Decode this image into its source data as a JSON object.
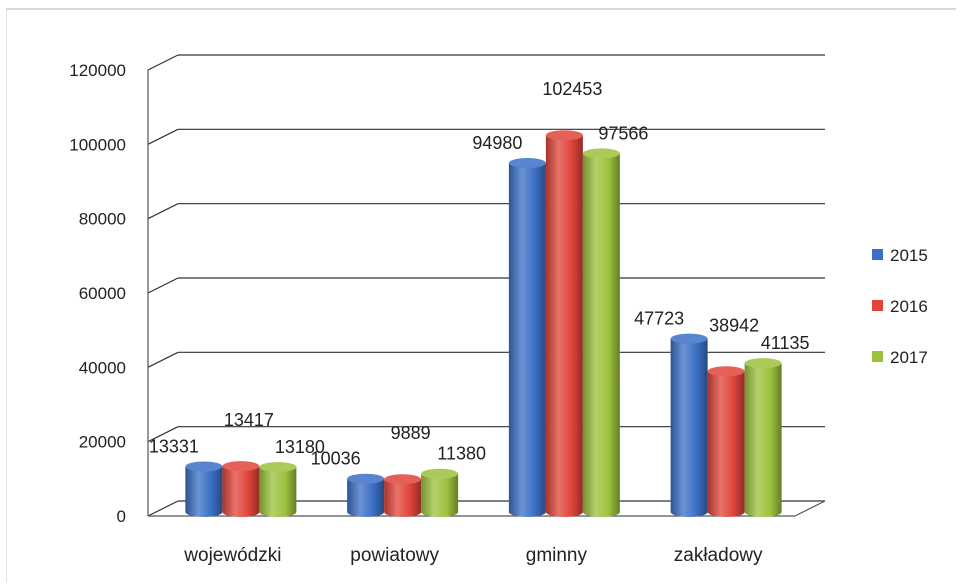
{
  "chart_data": {
    "type": "bar",
    "title": "",
    "xlabel": "",
    "ylabel": "",
    "ylim": [
      0,
      120000
    ],
    "yticks": [
      0,
      20000,
      40000,
      60000,
      80000,
      100000,
      120000
    ],
    "grid": true,
    "legend_position": "right",
    "categories": [
      "wojewódzki",
      "powiatowy",
      "gminny",
      "zakładowy"
    ],
    "series": [
      {
        "name": "2015",
        "color": "#3b6fc4",
        "values": [
          13331,
          10036,
          94980,
          47723
        ]
      },
      {
        "name": "2016",
        "color": "#e0443a",
        "values": [
          13417,
          9889,
          102453,
          38942
        ]
      },
      {
        "name": "2017",
        "color": "#9bc23c",
        "values": [
          13180,
          11380,
          97566,
          41135
        ]
      }
    ]
  }
}
